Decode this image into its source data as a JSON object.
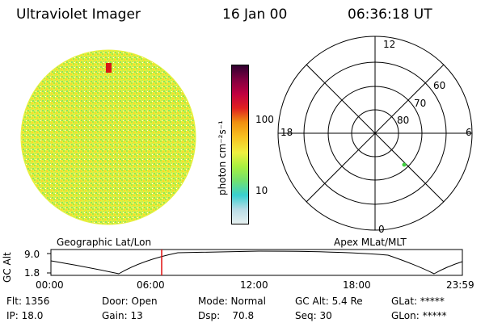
{
  "header": {
    "instrument": "Ultraviolet Imager",
    "date": "16 Jan 00",
    "time": "06:36:18 UT"
  },
  "colorbar": {
    "unit_label": "photon cm⁻²s⁻¹",
    "ticks": [
      "100",
      "10"
    ],
    "colors": [
      "#e6f0f0",
      "#b8dce6",
      "#38d0d0",
      "#70e070",
      "#a8f040",
      "#f0f040",
      "#f8c020",
      "#f09010",
      "#e02020",
      "#c00040",
      "#800040",
      "#300030"
    ]
  },
  "geo_map": {
    "label": "Geographic Lat/Lon"
  },
  "polar_plot": {
    "label": "Apex MLat/MLT",
    "mlt_labels": {
      "top": "12",
      "left": "18",
      "right": "6",
      "bottom": "0"
    },
    "lat_labels": [
      "60",
      "70",
      "80"
    ]
  },
  "altitude_plot": {
    "y_label": "GC Alt",
    "y_ticks": [
      "9.0",
      "1.8"
    ],
    "x_ticks": [
      "00:00",
      "06:00",
      "12:00",
      "18:00",
      "23:59"
    ]
  },
  "status": {
    "flt": "Flt: 1356",
    "ip": "IP: 18.0",
    "door": "Door: Open",
    "gain": "Gain: 13",
    "mode": "Mode: Normal",
    "dsp": "Dsp:    70.8",
    "gc_alt": "GC Alt: 5.4 Re",
    "seq": "Seq: 30",
    "glat": "GLat: *****",
    "glon": "GLon: *****"
  }
}
